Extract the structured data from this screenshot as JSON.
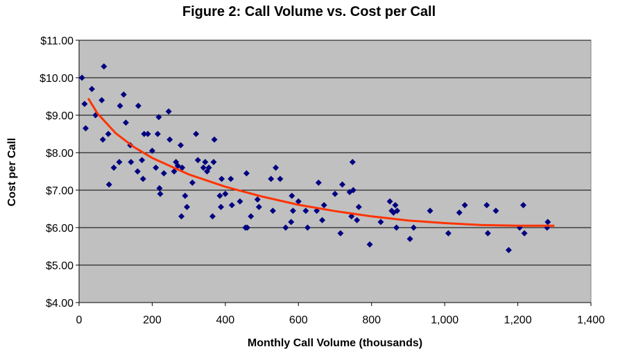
{
  "chart_data": {
    "type": "scatter",
    "title": "Figure 2: Call Volume vs. Cost per Call",
    "xlabel": "Monthly Call Volume (thousands)",
    "ylabel": "Cost per Call",
    "xlim": [
      0,
      1400
    ],
    "ylim": [
      4,
      11
    ],
    "x_ticks": [
      0,
      200,
      400,
      600,
      800,
      1000,
      1200,
      1400
    ],
    "x_tick_labels": [
      "0",
      "200",
      "400",
      "600",
      "800",
      "1,000",
      "1,200",
      "1,400"
    ],
    "y_ticks": [
      4,
      5,
      6,
      7,
      8,
      9,
      10,
      11
    ],
    "y_tick_labels": [
      "$4.00",
      "$5.00",
      "$6.00",
      "$7.00",
      "$8.00",
      "$9.00",
      "$10.00",
      "$11.00"
    ],
    "grid": "horizontal",
    "plot_background": "#c0c0c0",
    "marker_color": "#000080",
    "trend_color": "#ff3300",
    "points": [
      [
        8,
        10.0
      ],
      [
        15,
        9.3
      ],
      [
        18,
        8.65
      ],
      [
        35,
        9.7
      ],
      [
        45,
        9.0
      ],
      [
        62,
        9.4
      ],
      [
        65,
        8.35
      ],
      [
        68,
        10.3
      ],
      [
        80,
        8.5
      ],
      [
        82,
        7.15
      ],
      [
        95,
        7.6
      ],
      [
        110,
        7.75
      ],
      [
        112,
        9.25
      ],
      [
        122,
        9.55
      ],
      [
        128,
        8.8
      ],
      [
        140,
        8.2
      ],
      [
        142,
        7.75
      ],
      [
        160,
        7.5
      ],
      [
        162,
        9.25
      ],
      [
        172,
        7.8
      ],
      [
        175,
        7.3
      ],
      [
        178,
        8.5
      ],
      [
        188,
        8.5
      ],
      [
        200,
        8.05
      ],
      [
        210,
        7.6
      ],
      [
        215,
        8.5
      ],
      [
        218,
        8.95
      ],
      [
        220,
        7.05
      ],
      [
        222,
        6.9
      ],
      [
        232,
        7.45
      ],
      [
        245,
        9.1
      ],
      [
        248,
        8.35
      ],
      [
        260,
        7.5
      ],
      [
        265,
        7.75
      ],
      [
        270,
        7.65
      ],
      [
        278,
        8.2
      ],
      [
        280,
        6.3
      ],
      [
        282,
        7.6
      ],
      [
        290,
        6.85
      ],
      [
        295,
        6.55
      ],
      [
        310,
        7.2
      ],
      [
        320,
        8.5
      ],
      [
        325,
        7.8
      ],
      [
        340,
        7.6
      ],
      [
        345,
        7.75
      ],
      [
        350,
        7.5
      ],
      [
        355,
        7.6
      ],
      [
        365,
        6.3
      ],
      [
        368,
        7.75
      ],
      [
        370,
        8.35
      ],
      [
        385,
        6.85
      ],
      [
        388,
        6.55
      ],
      [
        390,
        7.3
      ],
      [
        400,
        6.9
      ],
      [
        415,
        7.3
      ],
      [
        418,
        6.6
      ],
      [
        440,
        6.7
      ],
      [
        455,
        6.0
      ],
      [
        458,
        7.45
      ],
      [
        460,
        6.0
      ],
      [
        470,
        6.3
      ],
      [
        488,
        6.75
      ],
      [
        492,
        6.55
      ],
      [
        525,
        7.3
      ],
      [
        530,
        6.45
      ],
      [
        538,
        7.6
      ],
      [
        550,
        7.3
      ],
      [
        565,
        6.0
      ],
      [
        580,
        6.15
      ],
      [
        582,
        6.85
      ],
      [
        585,
        6.45
      ],
      [
        600,
        6.7
      ],
      [
        620,
        6.45
      ],
      [
        625,
        6.0
      ],
      [
        650,
        6.45
      ],
      [
        655,
        7.2
      ],
      [
        665,
        6.2
      ],
      [
        670,
        6.6
      ],
      [
        700,
        6.9
      ],
      [
        715,
        5.85
      ],
      [
        720,
        7.15
      ],
      [
        740,
        6.95
      ],
      [
        745,
        6.3
      ],
      [
        748,
        7.75
      ],
      [
        750,
        7.0
      ],
      [
        760,
        6.2
      ],
      [
        765,
        6.55
      ],
      [
        795,
        5.55
      ],
      [
        825,
        6.15
      ],
      [
        850,
        6.7
      ],
      [
        855,
        6.45
      ],
      [
        860,
        6.4
      ],
      [
        865,
        6.6
      ],
      [
        868,
        6.0
      ],
      [
        870,
        6.45
      ],
      [
        905,
        5.7
      ],
      [
        915,
        6.0
      ],
      [
        960,
        6.45
      ],
      [
        1010,
        5.85
      ],
      [
        1040,
        6.4
      ],
      [
        1055,
        6.6
      ],
      [
        1115,
        6.6
      ],
      [
        1118,
        5.85
      ],
      [
        1140,
        6.45
      ],
      [
        1175,
        5.4
      ],
      [
        1205,
        6.0
      ],
      [
        1215,
        6.6
      ],
      [
        1218,
        5.85
      ],
      [
        1280,
        6.0
      ],
      [
        1282,
        6.15
      ]
    ],
    "trendline": {
      "x": [
        25,
        50,
        100,
        150,
        200,
        300,
        400,
        500,
        600,
        700,
        800,
        900,
        1000,
        1100,
        1200,
        1300
      ],
      "y": [
        9.45,
        9.05,
        8.52,
        8.15,
        7.86,
        7.42,
        7.09,
        6.83,
        6.61,
        6.44,
        6.3,
        6.19,
        6.12,
        6.07,
        6.05,
        6.05
      ]
    }
  }
}
